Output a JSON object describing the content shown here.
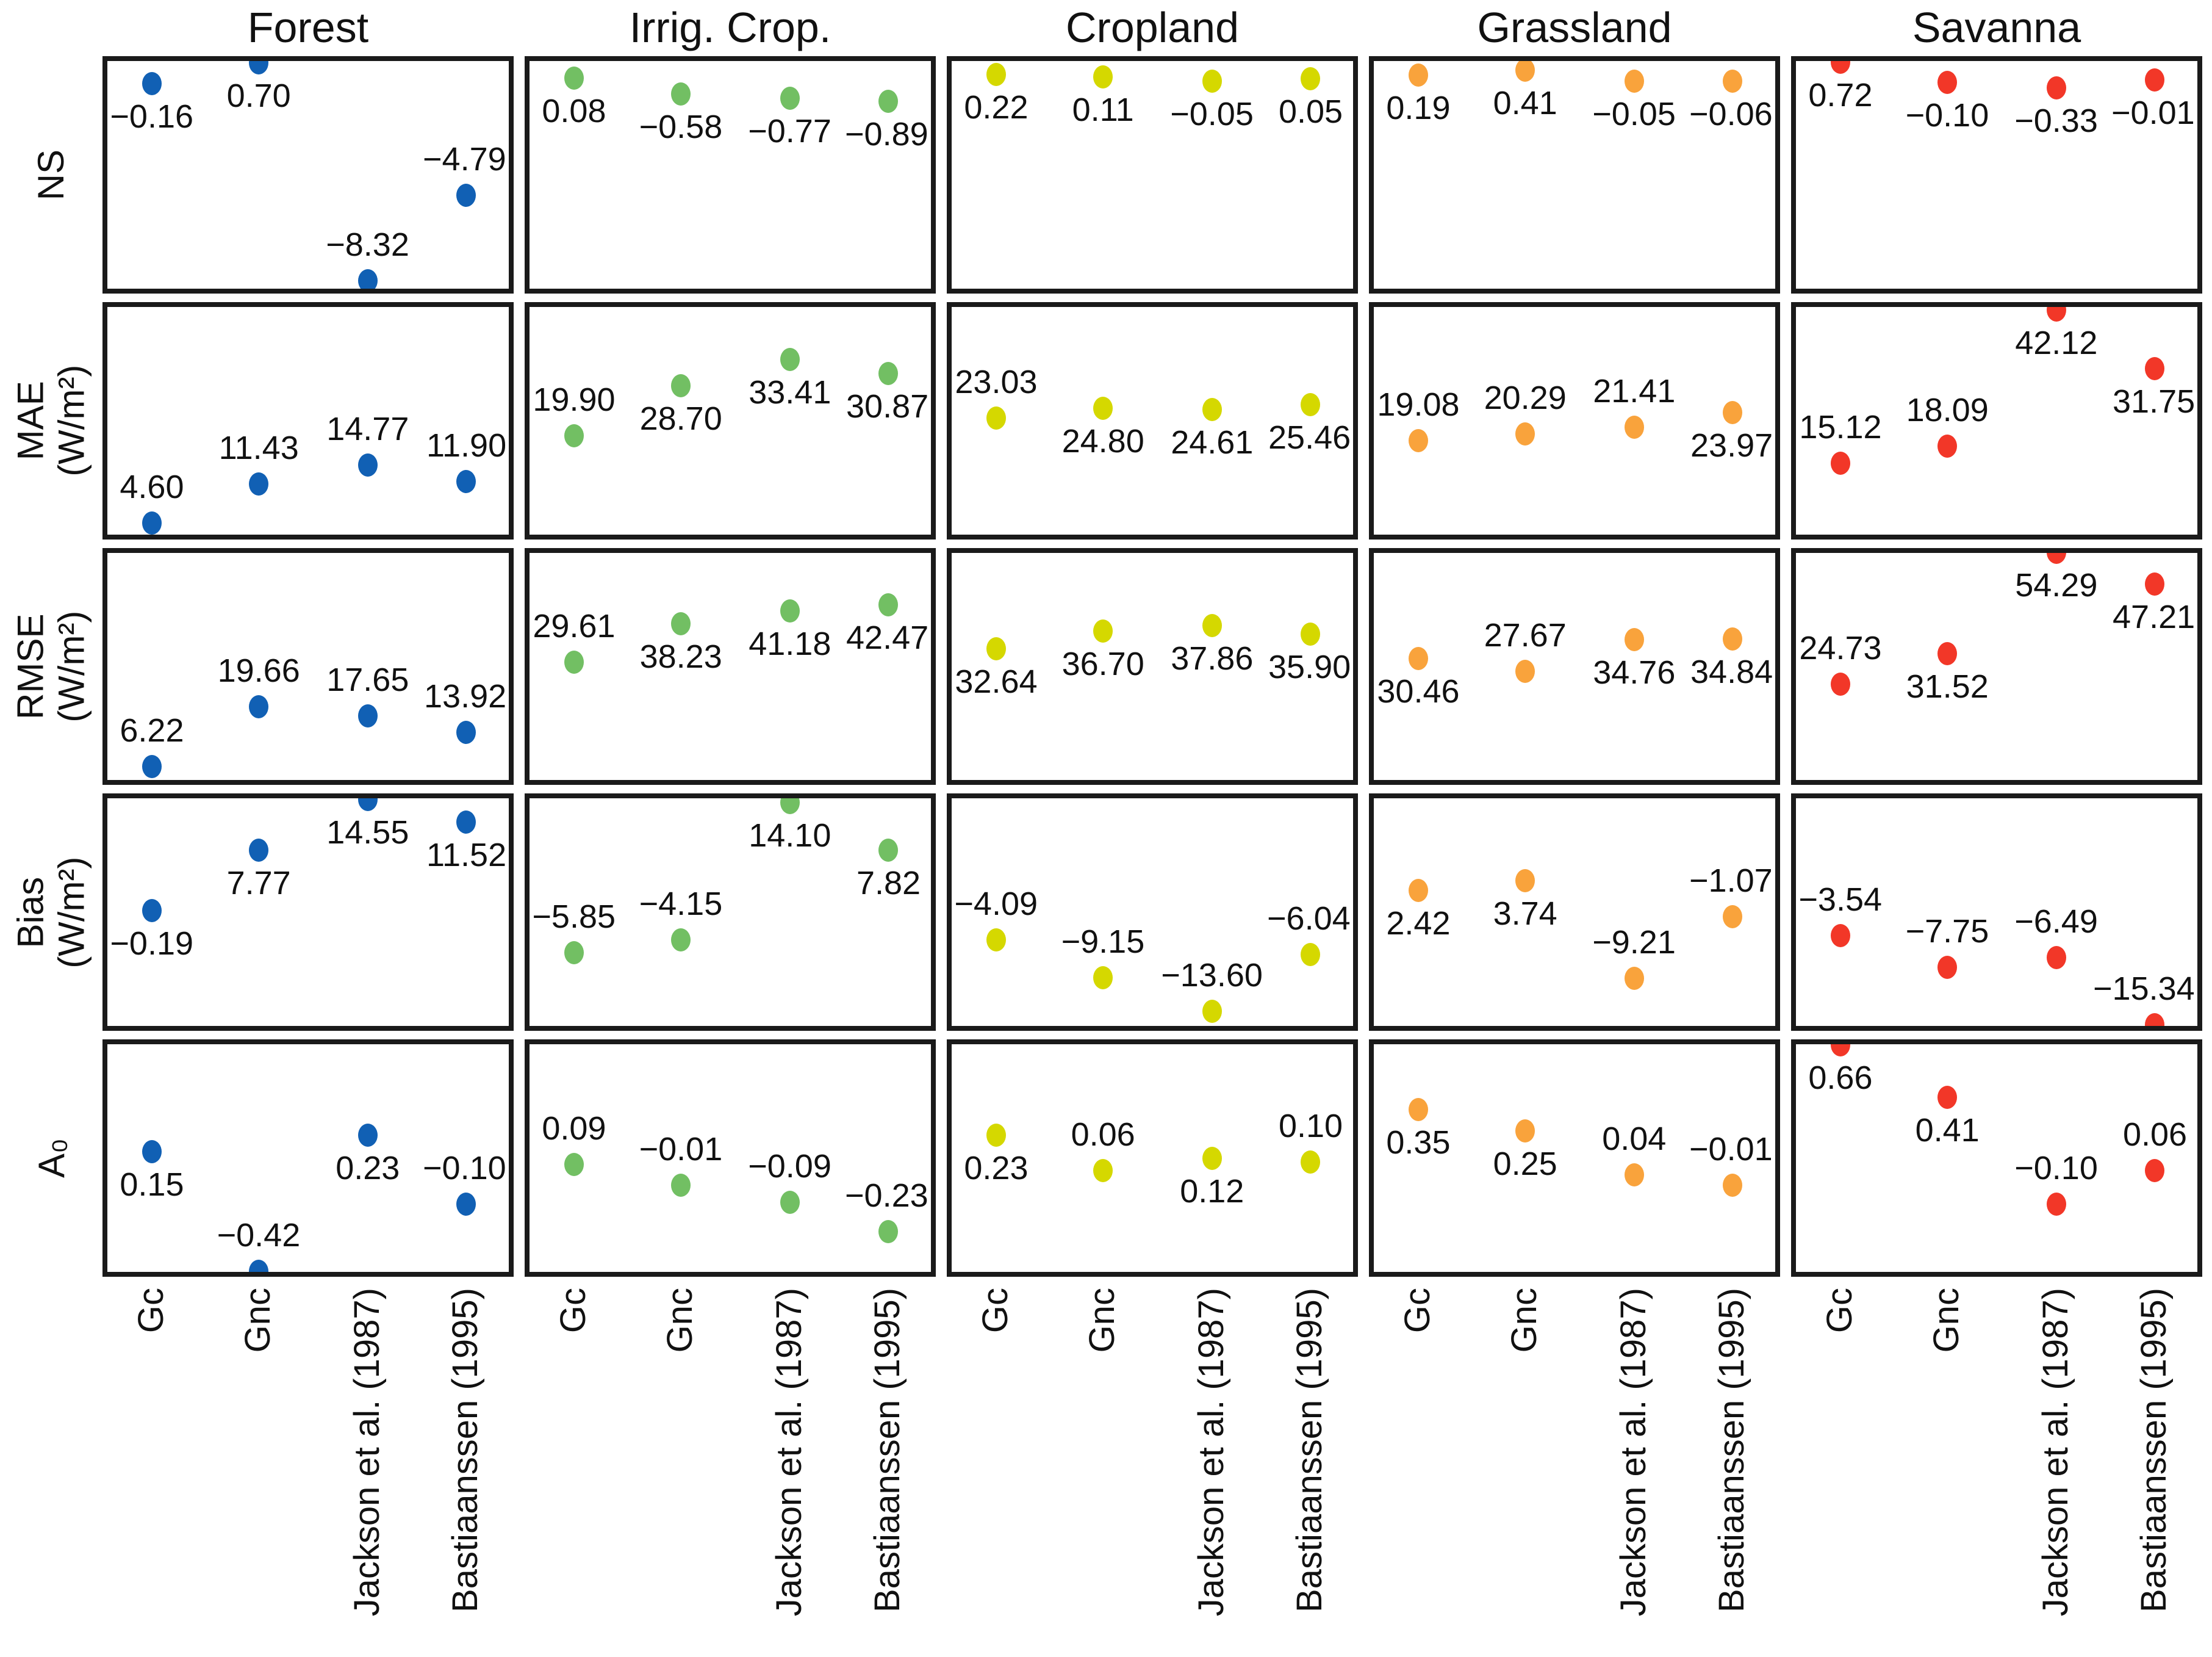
{
  "chart_data": {
    "type": "scatter",
    "title": "",
    "description_visible_axes": "5x5 grid of annotated dot plots; no y tick marks shown; shared y-scale per metric row",
    "columns": [
      "Forest",
      "Irrig. Crop.",
      "Cropland",
      "Grassland",
      "Savanna"
    ],
    "column_colors": [
      "#1160b4",
      "#72bf63",
      "#d5d800",
      "#f9a33c",
      "#f23728"
    ],
    "x_categories": [
      "Gc",
      "Gnc",
      "Jackson et al. (1987)",
      "Bastiaanssen (1995)"
    ],
    "rows": [
      {
        "id": "ns",
        "label": "NS",
        "unit": "",
        "ylim": [
          -8.85,
          0.98
        ]
      },
      {
        "id": "mae",
        "label": "MAE\n(W/m²)",
        "unit": "W/m²",
        "ylim": [
          1.7,
          43.5
        ]
      },
      {
        "id": "rmse",
        "label": "RMSE\n(W/m²)",
        "unit": "W/m²",
        "ylim": [
          2.1,
          55.3
        ]
      },
      {
        "id": "bias",
        "label": "Bias\n(W/m²)",
        "unit": "W/m²",
        "ylim": [
          -16.2,
          15.3
        ]
      },
      {
        "id": "a0",
        "label": "A₀",
        "unit": "",
        "ylim": [
          -0.445,
          0.685
        ]
      }
    ],
    "cells": [
      {
        "row": "ns",
        "col": "Forest",
        "values": [
          -0.16,
          0.7,
          -8.32,
          -4.79
        ],
        "labels": [
          "−0.16",
          "0.70",
          "−8.32",
          "−4.79"
        ],
        "label_pos": [
          "below",
          "below",
          "above",
          "above"
        ]
      },
      {
        "row": "ns",
        "col": "Irrig. Crop.",
        "values": [
          0.08,
          -0.58,
          -0.77,
          -0.89
        ],
        "labels": [
          "0.08",
          "−0.58",
          "−0.77",
          "−0.89"
        ],
        "label_pos": [
          "below",
          "below",
          "below",
          "below"
        ]
      },
      {
        "row": "ns",
        "col": "Cropland",
        "values": [
          0.22,
          0.11,
          -0.05,
          0.05
        ],
        "labels": [
          "0.22",
          "0.11",
          "−0.05",
          "0.05"
        ],
        "label_pos": [
          "below",
          "below",
          "below",
          "below"
        ]
      },
      {
        "row": "ns",
        "col": "Grassland",
        "values": [
          0.19,
          0.41,
          -0.05,
          -0.06
        ],
        "labels": [
          "0.19",
          "0.41",
          "−0.05",
          "−0.06"
        ],
        "label_pos": [
          "below",
          "below",
          "below",
          "below"
        ]
      },
      {
        "row": "ns",
        "col": "Savanna",
        "values": [
          0.72,
          -0.1,
          -0.33,
          -0.01
        ],
        "labels": [
          "0.72",
          "−0.10",
          "−0.33",
          "−0.01"
        ],
        "label_pos": [
          "below",
          "below",
          "below",
          "below"
        ]
      },
      {
        "row": "mae",
        "col": "Forest",
        "values": [
          4.6,
          11.43,
          14.77,
          11.9
        ],
        "labels": [
          "4.60",
          "11.43",
          "14.77",
          "11.90"
        ],
        "label_pos": [
          "above",
          "above",
          "above",
          "above"
        ]
      },
      {
        "row": "mae",
        "col": "Irrig. Crop.",
        "values": [
          19.9,
          28.7,
          33.41,
          30.87
        ],
        "labels": [
          "19.90",
          "28.70",
          "33.41",
          "30.87"
        ],
        "label_pos": [
          "above",
          "below",
          "below",
          "below"
        ]
      },
      {
        "row": "mae",
        "col": "Cropland",
        "values": [
          23.03,
          24.8,
          24.61,
          25.46
        ],
        "labels": [
          "23.03",
          "24.80",
          "24.61",
          "25.46"
        ],
        "label_pos": [
          "above",
          "below",
          "below",
          "below"
        ]
      },
      {
        "row": "mae",
        "col": "Grassland",
        "values": [
          19.08,
          20.29,
          21.41,
          23.97
        ],
        "labels": [
          "19.08",
          "20.29",
          "21.41",
          "23.97"
        ],
        "label_pos": [
          "above",
          "above",
          "above",
          "below"
        ]
      },
      {
        "row": "mae",
        "col": "Savanna",
        "values": [
          15.12,
          18.09,
          42.12,
          31.75
        ],
        "labels": [
          "15.12",
          "18.09",
          "42.12",
          "31.75"
        ],
        "label_pos": [
          "above",
          "above",
          "below",
          "below"
        ]
      },
      {
        "row": "rmse",
        "col": "Forest",
        "values": [
          6.22,
          19.66,
          17.65,
          13.92
        ],
        "labels": [
          "6.22",
          "19.66",
          "17.65",
          "13.92"
        ],
        "label_pos": [
          "above",
          "above",
          "above",
          "above"
        ]
      },
      {
        "row": "rmse",
        "col": "Irrig. Crop.",
        "values": [
          29.61,
          38.23,
          41.18,
          42.47
        ],
        "labels": [
          "29.61",
          "38.23",
          "41.18",
          "42.47"
        ],
        "label_pos": [
          "above",
          "below",
          "below",
          "below"
        ]
      },
      {
        "row": "rmse",
        "col": "Cropland",
        "values": [
          32.64,
          36.7,
          37.86,
          35.9
        ],
        "labels": [
          "32.64",
          "36.70",
          "37.86",
          "35.90"
        ],
        "label_pos": [
          "below",
          "below",
          "below",
          "below"
        ]
      },
      {
        "row": "rmse",
        "col": "Grassland",
        "values": [
          30.46,
          27.67,
          34.76,
          34.84
        ],
        "labels": [
          "30.46",
          "27.67",
          "34.76",
          "34.84"
        ],
        "label_pos": [
          "below",
          "above",
          "below",
          "below"
        ]
      },
      {
        "row": "rmse",
        "col": "Savanna",
        "values": [
          24.73,
          31.52,
          54.29,
          47.21
        ],
        "labels": [
          "24.73",
          "31.52",
          "54.29",
          "47.21"
        ],
        "label_pos": [
          "above",
          "below",
          "below",
          "below"
        ]
      },
      {
        "row": "bias",
        "col": "Forest",
        "values": [
          -0.19,
          7.77,
          14.55,
          11.52
        ],
        "labels": [
          "−0.19",
          "7.77",
          "14.55",
          "11.52"
        ],
        "label_pos": [
          "below",
          "below",
          "below",
          "below"
        ]
      },
      {
        "row": "bias",
        "col": "Irrig. Crop.",
        "values": [
          -5.85,
          -4.15,
          14.1,
          7.82
        ],
        "labels": [
          "−5.85",
          "−4.15",
          "14.10",
          "7.82"
        ],
        "label_pos": [
          "above",
          "above",
          "below",
          "below"
        ]
      },
      {
        "row": "bias",
        "col": "Cropland",
        "values": [
          -4.09,
          -9.15,
          -13.6,
          -6.04
        ],
        "labels": [
          "−4.09",
          "−9.15",
          "−13.60",
          "−6.04"
        ],
        "label_pos": [
          "above",
          "above",
          "above",
          "above"
        ]
      },
      {
        "row": "bias",
        "col": "Grassland",
        "values": [
          2.42,
          3.74,
          -9.21,
          -1.07
        ],
        "labels": [
          "2.42",
          "3.74",
          "−9.21",
          "−1.07"
        ],
        "label_pos": [
          "below",
          "below",
          "above",
          "above"
        ]
      },
      {
        "row": "bias",
        "col": "Savanna",
        "values": [
          -3.54,
          -7.75,
          -6.49,
          -15.34
        ],
        "labels": [
          "−3.54",
          "−7.75",
          "−6.49",
          "−15.34"
        ],
        "label_pos": [
          "above",
          "above",
          "above",
          "above"
        ]
      },
      {
        "row": "a0",
        "col": "Forest",
        "values": [
          0.15,
          -0.42,
          0.23,
          -0.1
        ],
        "labels": [
          "0.15",
          "−0.42",
          "0.23",
          "−0.10"
        ],
        "label_pos": [
          "below",
          "above",
          "below",
          "above"
        ]
      },
      {
        "row": "a0",
        "col": "Irrig. Crop.",
        "values": [
          0.09,
          -0.01,
          -0.09,
          -0.23
        ],
        "labels": [
          "0.09",
          "−0.01",
          "−0.09",
          "−0.23"
        ],
        "label_pos": [
          "above",
          "above",
          "above",
          "above"
        ]
      },
      {
        "row": "a0",
        "col": "Cropland",
        "values": [
          0.23,
          0.06,
          0.12,
          0.1
        ],
        "labels": [
          "0.23",
          "0.06",
          "0.12",
          "0.10"
        ],
        "label_pos": [
          "below",
          "above",
          "below",
          "above"
        ]
      },
      {
        "row": "a0",
        "col": "Grassland",
        "values": [
          0.35,
          0.25,
          0.04,
          -0.01
        ],
        "labels": [
          "0.35",
          "0.25",
          "0.04",
          "−0.01"
        ],
        "label_pos": [
          "below",
          "below",
          "above",
          "above"
        ]
      },
      {
        "row": "a0",
        "col": "Savanna",
        "values": [
          0.66,
          0.41,
          -0.1,
          0.06
        ],
        "labels": [
          "0.66",
          "0.41",
          "−0.10",
          "0.06"
        ],
        "label_pos": [
          "below",
          "below",
          "above",
          "above"
        ]
      }
    ]
  }
}
